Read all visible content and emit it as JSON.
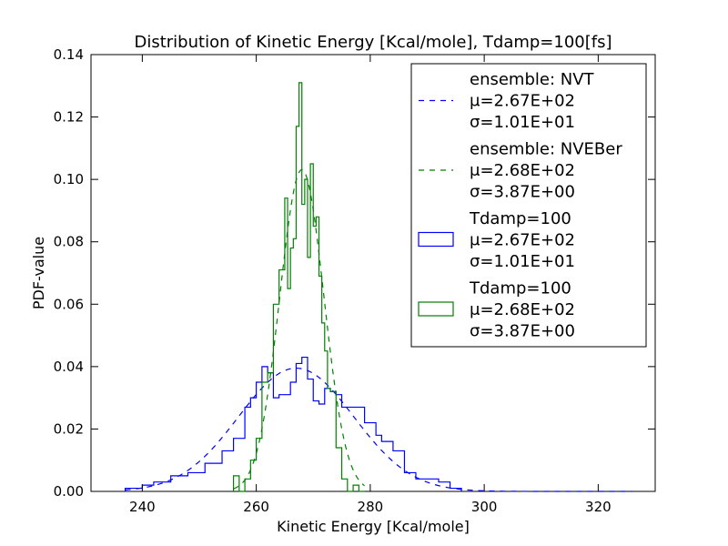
{
  "chart_data": {
    "type": "histogram",
    "title": "Distribution of Kinetic Energy [Kcal/mole], Tdamp=100[fs]",
    "xlabel": "Kinetic Energy [Kcal/mole]",
    "ylabel": "PDF-value",
    "xlim": [
      231,
      330
    ],
    "ylim": [
      0,
      0.14
    ],
    "xticks": [
      240,
      260,
      280,
      300,
      320
    ],
    "yticks": [
      0.0,
      0.02,
      0.04,
      0.06,
      0.08,
      0.1,
      0.12,
      0.14
    ],
    "ytick_labels": [
      "0.00",
      "0.02",
      "0.04",
      "0.06",
      "0.08",
      "0.10",
      "0.12",
      "0.14"
    ],
    "grid": false,
    "legend_position": "top-right",
    "colors": {
      "nvt": "#0000ff",
      "nveber": "#008000"
    },
    "fits": [
      {
        "name": "NVT fit",
        "style": "dashed",
        "color": "#0000ff",
        "legend_lines": [
          "ensemble: NVT",
          "μ=2.67E+02",
          "σ=1.01E+01"
        ],
        "mean": 267.0,
        "sigma": 10.1,
        "x_range": [
          237,
          326
        ]
      },
      {
        "name": "NVEBer fit",
        "style": "dashed",
        "color": "#008000",
        "legend_lines": [
          "ensemble: NVEBer",
          "μ=2.68E+02",
          "σ=3.87E+00"
        ],
        "mean": 268.0,
        "sigma": 3.87,
        "x_range": [
          256,
          279
        ]
      }
    ],
    "histograms": [
      {
        "name": "NVT histogram",
        "color": "#0000ff",
        "legend_lines": [
          "Tdamp=100",
          "μ=2.67E+02",
          "σ=1.01E+01"
        ],
        "edges": [
          237,
          240,
          242,
          245,
          248,
          251,
          254,
          256,
          258,
          259,
          260,
          261,
          262,
          263,
          264,
          265,
          266,
          267,
          268,
          269,
          270,
          271,
          272,
          273,
          274,
          275,
          276,
          277,
          279,
          281,
          282,
          284,
          286,
          288,
          290,
          292,
          294,
          296
        ],
        "values": [
          0.001,
          0.002,
          0.003,
          0.005,
          0.006,
          0.009,
          0.013,
          0.017,
          0.027,
          0.03,
          0.035,
          0.04,
          0.038,
          0.03,
          0.031,
          0.031,
          0.035,
          0.041,
          0.043,
          0.036,
          0.029,
          0.028,
          0.033,
          0.032,
          0.031,
          0.027,
          0.027,
          0.027,
          0.022,
          0.018,
          0.016,
          0.013,
          0.006,
          0.004,
          0.004,
          0.003,
          0.001
        ]
      },
      {
        "name": "NVEBer histogram",
        "color": "#008000",
        "legend_lines": [
          "Tdamp=100",
          "μ=2.68E+02",
          "σ=3.87E+00"
        ],
        "edges": [
          256,
          257,
          258,
          259,
          260,
          261,
          262,
          263,
          264,
          265,
          265.5,
          266,
          266.5,
          267,
          267.5,
          268,
          268.5,
          269,
          269.5,
          270,
          270.5,
          271,
          271.5,
          272,
          272.5,
          273,
          274,
          275,
          276,
          277,
          278,
          279
        ],
        "values": [
          0.005,
          0.0,
          0.004,
          0.01,
          0.017,
          0.035,
          0.038,
          0.06,
          0.071,
          0.094,
          0.065,
          0.078,
          0.081,
          0.117,
          0.131,
          0.092,
          0.1,
          0.075,
          0.105,
          0.085,
          0.088,
          0.069,
          0.054,
          0.045,
          0.033,
          0.032,
          0.014,
          0.004,
          0.0,
          0.002,
          0.0
        ]
      }
    ]
  }
}
